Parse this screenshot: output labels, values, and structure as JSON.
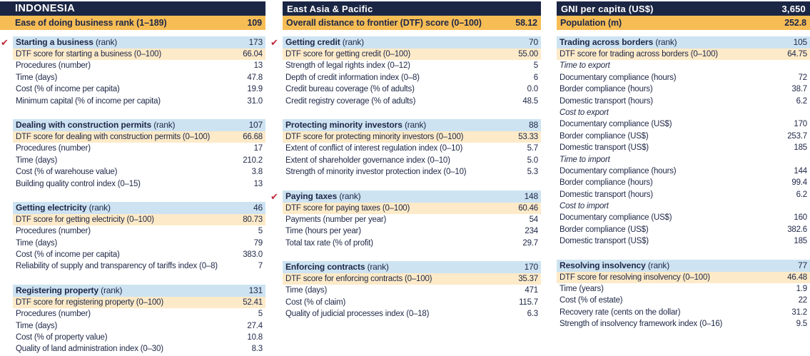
{
  "colors": {
    "navy": "#1b2644",
    "navy_text": "#1e2747",
    "orange": "#f7bd55",
    "light_blue": "#cde3f2",
    "cream": "#fdeac8",
    "check_red": "#c0293a"
  },
  "icons": {
    "reform_check": "✔"
  },
  "header": {
    "country": {
      "name": "INDONESIA"
    },
    "ease_rank": {
      "label": "Ease of doing business rank (1–189)",
      "value": "109"
    },
    "region": {
      "name": "East Asia & Pacific"
    },
    "dtf": {
      "label": "Overall distance to frontier (DTF) score (0–100)",
      "value": "58.12"
    },
    "gni": {
      "label": "GNI per capita (US$)",
      "value": "3,650"
    },
    "population": {
      "label": "Population (m)",
      "value": "252.8"
    }
  },
  "columns": [
    {
      "sections": [
        {
          "reform": true,
          "title": "Starting a business",
          "title_suffix": "(rank)",
          "rank": "173",
          "rows": [
            {
              "kind": "dtf",
              "label": "DTF score for starting a business (0–100)",
              "value": "66.04"
            },
            {
              "kind": "plain",
              "label": "Procedures (number)",
              "value": "13"
            },
            {
              "kind": "plain",
              "label": "Time (days)",
              "value": "47.8"
            },
            {
              "kind": "plain",
              "label": "Cost (% of income per capita)",
              "value": "19.9"
            },
            {
              "kind": "plain",
              "label": "Minimum capital (% of income per capita)",
              "value": "31.0"
            }
          ]
        },
        {
          "reform": false,
          "title": "Dealing with construction permits",
          "title_suffix": "(rank)",
          "rank": "107",
          "rows": [
            {
              "kind": "dtf",
              "label": "DTF score for dealing with construction permits (0–100)",
              "value": "66.68"
            },
            {
              "kind": "plain",
              "label": "Procedures (number)",
              "value": "17"
            },
            {
              "kind": "plain",
              "label": "Time (days)",
              "value": "210.2"
            },
            {
              "kind": "plain",
              "label": "Cost (% of warehouse value)",
              "value": "3.8"
            },
            {
              "kind": "plain",
              "label": "Building quality control index (0–15)",
              "value": "13"
            }
          ]
        },
        {
          "reform": false,
          "title": "Getting electricity",
          "title_suffix": "(rank)",
          "rank": "46",
          "rows": [
            {
              "kind": "dtf",
              "label": "DTF score for getting electricity (0–100)",
              "value": "80.73"
            },
            {
              "kind": "plain",
              "label": "Procedures (number)",
              "value": "5"
            },
            {
              "kind": "plain",
              "label": "Time (days)",
              "value": "79"
            },
            {
              "kind": "plain",
              "label": "Cost (% of income per capita)",
              "value": "383.0"
            },
            {
              "kind": "plain",
              "label": "Reliability of supply and transparency of tariffs index (0–8)",
              "value": "7"
            }
          ]
        },
        {
          "reform": false,
          "title": "Registering property",
          "title_suffix": "(rank)",
          "rank": "131",
          "rows": [
            {
              "kind": "dtf",
              "label": "DTF score for registering property (0–100)",
              "value": "52.41"
            },
            {
              "kind": "plain",
              "label": "Procedures (number)",
              "value": "5"
            },
            {
              "kind": "plain",
              "label": "Time (days)",
              "value": "27.4"
            },
            {
              "kind": "plain",
              "label": "Cost (% of property value)",
              "value": "10.8"
            },
            {
              "kind": "plain",
              "label": "Quality of land administration index (0–30)",
              "value": "8.3"
            }
          ]
        }
      ]
    },
    {
      "sections": [
        {
          "reform": true,
          "title": "Getting credit",
          "title_suffix": "(rank)",
          "rank": "70",
          "rows": [
            {
              "kind": "dtf",
              "label": "DTF score for getting credit (0–100)",
              "value": "55.00"
            },
            {
              "kind": "plain",
              "label": "Strength of legal rights index (0–12)",
              "value": "5"
            },
            {
              "kind": "plain",
              "label": "Depth of credit information index (0–8)",
              "value": "6"
            },
            {
              "kind": "plain",
              "label": "Credit bureau coverage (% of adults)",
              "value": "0.0"
            },
            {
              "kind": "plain",
              "label": "Credit registry coverage (% of adults)",
              "value": "48.5"
            }
          ]
        },
        {
          "reform": false,
          "title": "Protecting minority investors",
          "title_suffix": "(rank)",
          "rank": "88",
          "rows": [
            {
              "kind": "dtf",
              "label": "DTF score for protecting minority investors (0–100)",
              "value": "53.33"
            },
            {
              "kind": "plain",
              "label": "Extent of conflict of interest regulation index (0–10)",
              "value": "5.7"
            },
            {
              "kind": "plain",
              "label": "Extent of shareholder governance index (0–10)",
              "value": "5.0"
            },
            {
              "kind": "plain",
              "label": "Strength of minority investor protection index (0–10)",
              "value": "5.3"
            }
          ]
        },
        {
          "reform": true,
          "title": "Paying taxes",
          "title_suffix": "(rank)",
          "rank": "148",
          "rows": [
            {
              "kind": "dtf",
              "label": "DTF score for paying taxes (0–100)",
              "value": "60.46"
            },
            {
              "kind": "plain",
              "label": "Payments (number per year)",
              "value": "54"
            },
            {
              "kind": "plain",
              "label": "Time (hours per year)",
              "value": "234"
            },
            {
              "kind": "plain",
              "label": "Total tax rate (% of profit)",
              "value": "29.7"
            }
          ]
        },
        {
          "reform": false,
          "title": "Enforcing contracts",
          "title_suffix": "(rank)",
          "rank": "170",
          "rows": [
            {
              "kind": "dtf",
              "label": "DTF score for enforcing contracts (0–100)",
              "value": "35.37"
            },
            {
              "kind": "plain",
              "label": "Time (days)",
              "value": "471"
            },
            {
              "kind": "plain",
              "label": "Cost (% of claim)",
              "value": "115.7"
            },
            {
              "kind": "plain",
              "label": "Quality of judicial processes index (0–18)",
              "value": "6.3"
            }
          ]
        }
      ]
    },
    {
      "sections": [
        {
          "reform": false,
          "title": "Trading across borders",
          "title_suffix": "(rank)",
          "rank": "105",
          "rows": [
            {
              "kind": "dtf",
              "label": "DTF score for trading across borders (0–100)",
              "value": "64.75"
            },
            {
              "kind": "subhead",
              "label": "Time to export"
            },
            {
              "kind": "plain",
              "label": "Documentary compliance (hours)",
              "value": "72"
            },
            {
              "kind": "plain",
              "label": "Border compliance (hours)",
              "value": "38.7"
            },
            {
              "kind": "plain",
              "label": "Domestic transport (hours)",
              "value": "6.2"
            },
            {
              "kind": "subhead",
              "label": "Cost to export"
            },
            {
              "kind": "plain",
              "label": "Documentary compliance (US$)",
              "value": "170"
            },
            {
              "kind": "plain",
              "label": "Border compliance (US$)",
              "value": "253.7"
            },
            {
              "kind": "plain",
              "label": "Domestic transport (US$)",
              "value": "185"
            },
            {
              "kind": "subhead",
              "label": "Time to import"
            },
            {
              "kind": "plain",
              "label": "Documentary compliance (hours)",
              "value": "144"
            },
            {
              "kind": "plain",
              "label": "Border compliance (hours)",
              "value": "99.4"
            },
            {
              "kind": "plain",
              "label": "Domestic transport (hours)",
              "value": "6.2"
            },
            {
              "kind": "subhead",
              "label": "Cost to import"
            },
            {
              "kind": "plain",
              "label": "Documentary compliance (US$)",
              "value": "160"
            },
            {
              "kind": "plain",
              "label": "Border compliance (US$)",
              "value": "382.6"
            },
            {
              "kind": "plain",
              "label": "Domestic transport (US$)",
              "value": "185"
            }
          ]
        },
        {
          "reform": false,
          "title": "Resolving insolvency",
          "title_suffix": "(rank)",
          "rank": "77",
          "rows": [
            {
              "kind": "dtf",
              "label": "DTF score for resolving insolvency (0–100)",
              "value": "46.48"
            },
            {
              "kind": "plain",
              "label": "Time (years)",
              "value": "1.9"
            },
            {
              "kind": "plain",
              "label": "Cost (% of estate)",
              "value": "22"
            },
            {
              "kind": "plain",
              "label": "Recovery rate (cents on the dollar)",
              "value": "31.2"
            },
            {
              "kind": "plain",
              "label": "Strength of insolvency framework index (0–16)",
              "value": "9.5"
            }
          ]
        }
      ]
    }
  ]
}
